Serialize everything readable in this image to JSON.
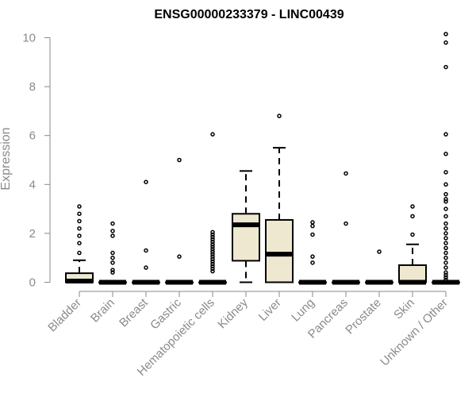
{
  "chart_data": {
    "type": "boxplot",
    "title": "ENSG00000233379 - LINC00439",
    "ylabel": "Expression",
    "xlabel": "",
    "ylim": [
      0,
      10
    ],
    "yticks": [
      0,
      2,
      4,
      6,
      8,
      10
    ],
    "grid": false,
    "colors": {
      "box_fill": "#efe8d0",
      "stroke": "#000000",
      "axis": "#8a8a8a"
    },
    "categories": [
      "Bladder",
      "Brain",
      "Breast",
      "Gastric",
      "Hematopoietic cells",
      "Kidney",
      "Liver",
      "Lung",
      "Pancreas",
      "Prostate",
      "Skin",
      "Unknown / Other"
    ],
    "boxes": [
      {
        "category": "Bladder",
        "min": 0,
        "q1": 0,
        "median": 0.05,
        "q3": 0.37,
        "max": 0.9,
        "outliers": [
          3.1,
          2.8,
          2.5,
          2.2,
          1.9,
          1.6,
          1.2
        ]
      },
      {
        "category": "Brain",
        "min": 0,
        "q1": 0,
        "median": 0,
        "q3": 0,
        "max": 0,
        "outliers": [
          2.4,
          2.1,
          1.9,
          1.2,
          1.0,
          0.8,
          0.5,
          0.4
        ]
      },
      {
        "category": "Breast",
        "min": 0,
        "q1": 0,
        "median": 0,
        "q3": 0,
        "max": 0,
        "outliers": [
          4.1,
          1.3,
          0.6
        ]
      },
      {
        "category": "Gastric",
        "min": 0,
        "q1": 0,
        "median": 0,
        "q3": 0,
        "max": 0,
        "outliers": [
          5.0,
          1.05
        ]
      },
      {
        "category": "Hematopoietic cells",
        "min": 0,
        "q1": 0,
        "median": 0,
        "q3": 0,
        "max": 0,
        "outliers": [
          6.05,
          2.05,
          1.95,
          1.85,
          1.75,
          1.65,
          1.55,
          1.45,
          1.35,
          1.25,
          1.15,
          1.05,
          0.95,
          0.85,
          0.75,
          0.65,
          0.55,
          0.45
        ]
      },
      {
        "category": "Kidney",
        "min": 0,
        "q1": 0.88,
        "median": 2.35,
        "q3": 2.8,
        "max": 4.55,
        "outliers": []
      },
      {
        "category": "Liver",
        "min": 0,
        "q1": 0,
        "median": 1.15,
        "q3": 2.55,
        "max": 5.5,
        "outliers": [
          6.8
        ]
      },
      {
        "category": "Lung",
        "min": 0,
        "q1": 0,
        "median": 0,
        "q3": 0,
        "max": 0,
        "outliers": [
          2.45,
          2.3,
          1.95,
          1.05,
          0.8
        ]
      },
      {
        "category": "Pancreas",
        "min": 0,
        "q1": 0,
        "median": 0,
        "q3": 0,
        "max": 0,
        "outliers": [
          4.45,
          2.4
        ]
      },
      {
        "category": "Prostate",
        "min": 0,
        "q1": 0,
        "median": 0,
        "q3": 0,
        "max": 0,
        "outliers": [
          1.25
        ]
      },
      {
        "category": "Skin",
        "min": 0,
        "q1": 0,
        "median": 0,
        "q3": 0.7,
        "max": 1.55,
        "outliers": [
          3.1,
          2.7,
          1.95
        ]
      },
      {
        "category": "Unknown / Other",
        "min": 0,
        "q1": 0,
        "median": 0,
        "q3": 0,
        "max": 0,
        "outliers": [
          10.15,
          9.8,
          8.8,
          6.05,
          5.25,
          4.5,
          4.0,
          3.6,
          3.4,
          3.3,
          3.0,
          2.7,
          2.4,
          2.2,
          2.0,
          1.8,
          1.6,
          1.4,
          1.2,
          1.0,
          0.8,
          0.6,
          0.4,
          0.3,
          0.2,
          0.1
        ]
      }
    ]
  }
}
